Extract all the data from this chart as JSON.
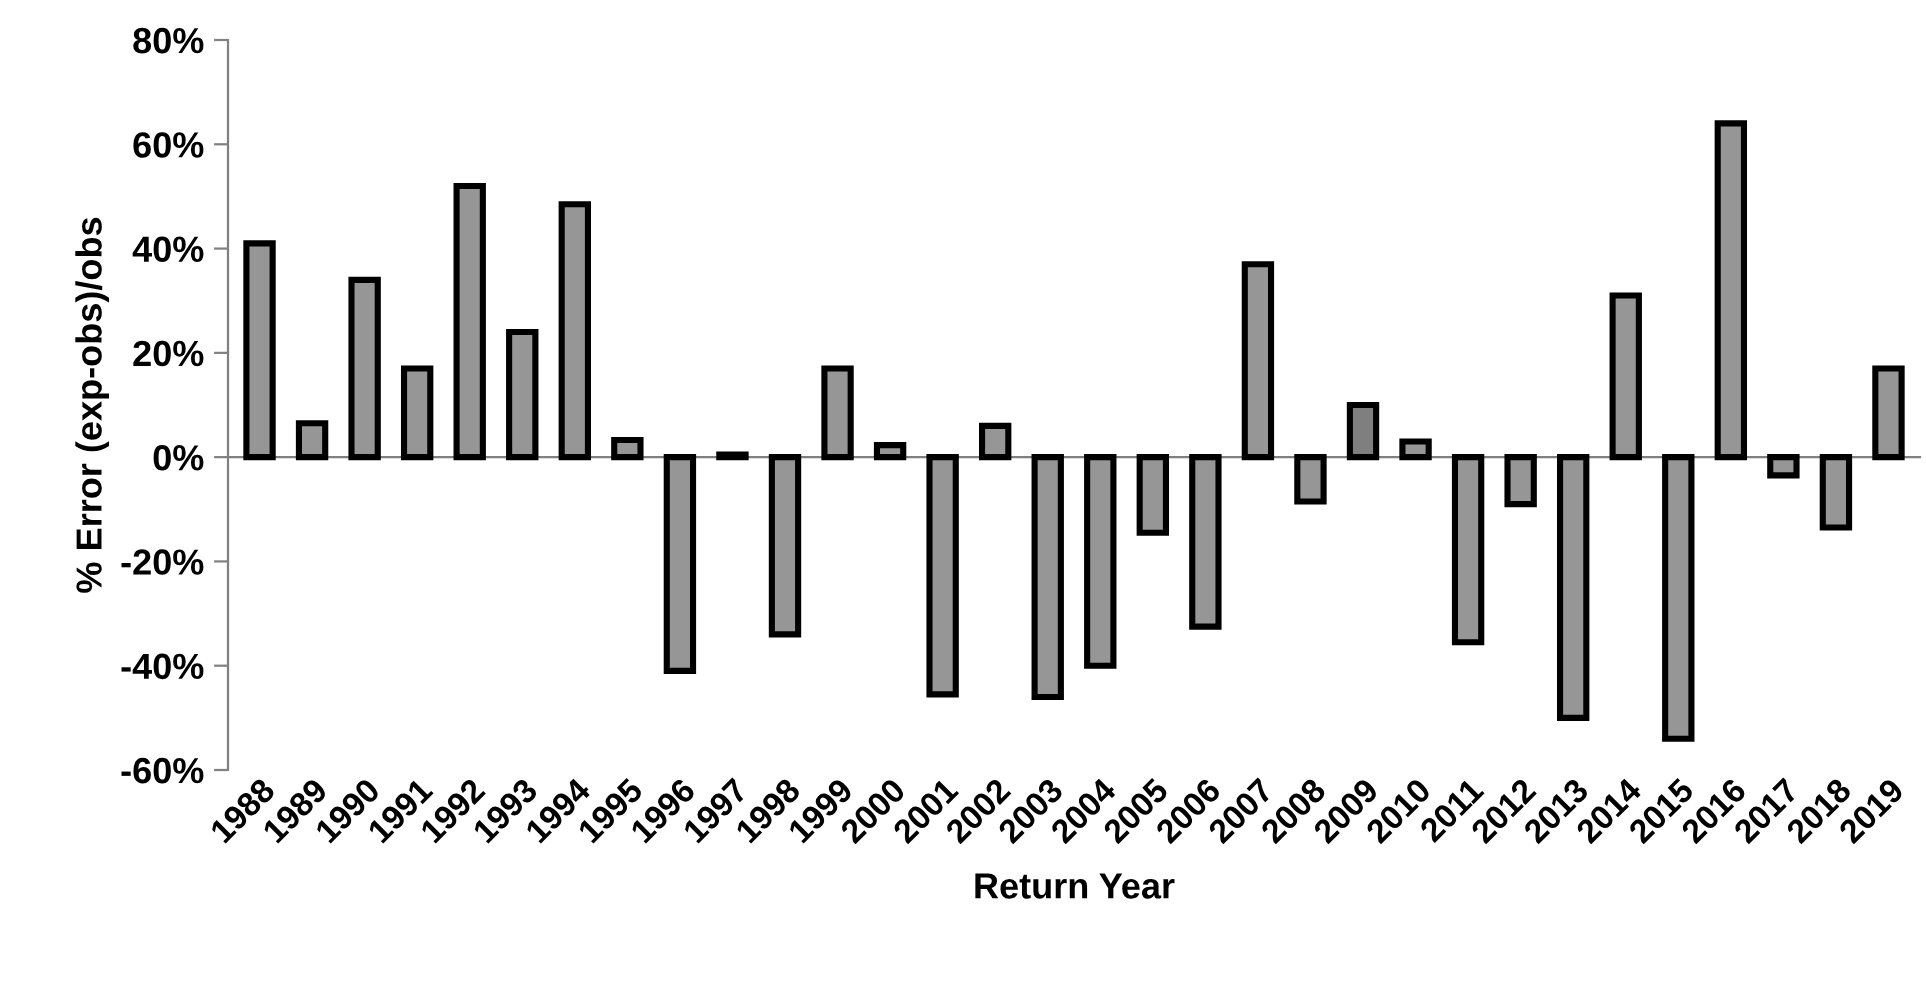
{
  "chart_data": {
    "type": "bar",
    "xlabel": "Return Year",
    "ylabel": "% Error (exp-obs)/obs",
    "categories": [
      "1988",
      "1989",
      "1990",
      "1991",
      "1992",
      "1993",
      "1994",
      "1995",
      "1996",
      "1997",
      "1998",
      "1999",
      "2000",
      "2001",
      "2002",
      "2003",
      "2004",
      "2005",
      "2006",
      "2007",
      "2008",
      "2009",
      "2010",
      "2011",
      "2012",
      "2013",
      "2014",
      "2015",
      "2016",
      "2017",
      "2018",
      "2019"
    ],
    "values": [
      41,
      6.5,
      34,
      17,
      52,
      24,
      48.5,
      3.3,
      -41,
      0.5,
      -34,
      17,
      2.3,
      -45.5,
      6,
      -46,
      -40,
      -14.5,
      -32.5,
      37,
      -8.5,
      10,
      3,
      -35.5,
      -9,
      -50,
      31,
      -54,
      64,
      -3.5,
      -13.5,
      17
    ],
    "colors": [
      "#969696",
      "#969696",
      "#969696",
      "#969696",
      "#969696",
      "#969696",
      "#969696",
      "#969696",
      "#969696",
      "#969696",
      "#969696",
      "#969696",
      "#969696",
      "#969696",
      "#969696",
      "#969696",
      "#969696",
      "#969696",
      "#969696",
      "#969696",
      "#969696",
      "#7f7f7f",
      "#969696",
      "#969696",
      "#969696",
      "#969696",
      "#969696",
      "#969696",
      "#969696",
      "#969696",
      "#969696",
      "#969696"
    ],
    "ylim": [
      -60,
      80
    ],
    "yticks": [
      {
        "value": -60,
        "label": "-60%"
      },
      {
        "value": -40,
        "label": "-40%"
      },
      {
        "value": -20,
        "label": "-20%"
      },
      {
        "value": 0,
        "label": "0%"
      },
      {
        "value": 20,
        "label": "20%"
      },
      {
        "value": 40,
        "label": "40%"
      },
      {
        "value": 60,
        "label": "60%"
      },
      {
        "value": 80,
        "label": "80%"
      }
    ],
    "legend": false
  }
}
